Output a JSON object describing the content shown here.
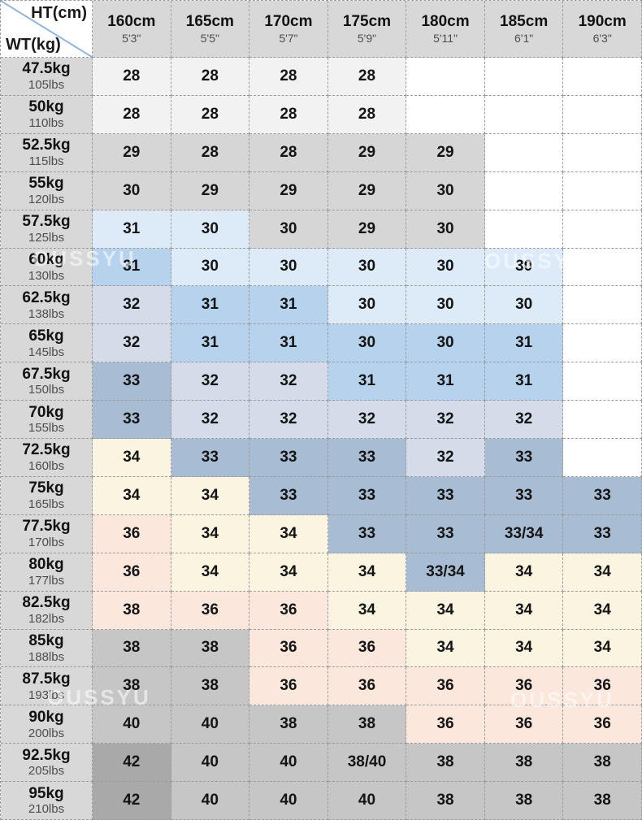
{
  "palette": {
    "w": "#ffffff",
    "g0": "#f2f2f2",
    "g1": "#d6d6d6",
    "g2": "#c6c6c6",
    "g3": "#a9a9a9",
    "b0": "#dcebf7",
    "b1": "#b7d2ec",
    "b2": "#a8bcd3",
    "b3": "#d3dce8",
    "cream": "#faf4e0",
    "pink": "#fbe7db",
    "header": "#d8d8d8",
    "border": "#9b9b9b",
    "diagonal": "#8fb3d9"
  },
  "watermark": {
    "text": "OUSSYU"
  },
  "corner": {
    "height_label": "HT(cm)",
    "weight_label": "WT(kg)"
  },
  "chart_data": {
    "type": "table",
    "columns": [
      {
        "cm": "160cm",
        "ftin": "5'3\""
      },
      {
        "cm": "165cm",
        "ftin": "5'5\""
      },
      {
        "cm": "170cm",
        "ftin": "5'7\""
      },
      {
        "cm": "175cm",
        "ftin": "5'9\""
      },
      {
        "cm": "180cm",
        "ftin": "5'11\""
      },
      {
        "cm": "185cm",
        "ftin": "6'1\""
      },
      {
        "cm": "190cm",
        "ftin": "6'3\""
      }
    ],
    "rows": [
      {
        "kg": "47.5kg",
        "lbs": "105lbs",
        "cells": [
          {
            "v": "28",
            "c": "g0"
          },
          {
            "v": "28",
            "c": "g0"
          },
          {
            "v": "28",
            "c": "g0"
          },
          {
            "v": "28",
            "c": "g0"
          },
          {
            "v": "",
            "c": "w"
          },
          {
            "v": "",
            "c": "w"
          },
          {
            "v": "",
            "c": "w"
          }
        ]
      },
      {
        "kg": "50kg",
        "lbs": "110lbs",
        "cells": [
          {
            "v": "28",
            "c": "g0"
          },
          {
            "v": "28",
            "c": "g0"
          },
          {
            "v": "28",
            "c": "g0"
          },
          {
            "v": "28",
            "c": "g0"
          },
          {
            "v": "",
            "c": "w"
          },
          {
            "v": "",
            "c": "w"
          },
          {
            "v": "",
            "c": "w"
          }
        ]
      },
      {
        "kg": "52.5kg",
        "lbs": "115lbs",
        "cells": [
          {
            "v": "29",
            "c": "g1"
          },
          {
            "v": "28",
            "c": "g1"
          },
          {
            "v": "28",
            "c": "g1"
          },
          {
            "v": "29",
            "c": "g1"
          },
          {
            "v": "29",
            "c": "g1"
          },
          {
            "v": "",
            "c": "w"
          },
          {
            "v": "",
            "c": "w"
          }
        ]
      },
      {
        "kg": "55kg",
        "lbs": "120lbs",
        "cells": [
          {
            "v": "30",
            "c": "g1"
          },
          {
            "v": "29",
            "c": "g1"
          },
          {
            "v": "29",
            "c": "g1"
          },
          {
            "v": "29",
            "c": "g1"
          },
          {
            "v": "30",
            "c": "g1"
          },
          {
            "v": "",
            "c": "w"
          },
          {
            "v": "",
            "c": "w"
          }
        ]
      },
      {
        "kg": "57.5kg",
        "lbs": "125lbs",
        "cells": [
          {
            "v": "31",
            "c": "b0"
          },
          {
            "v": "30",
            "c": "b0"
          },
          {
            "v": "30",
            "c": "g1"
          },
          {
            "v": "29",
            "c": "g1"
          },
          {
            "v": "30",
            "c": "g1"
          },
          {
            "v": "",
            "c": "w"
          },
          {
            "v": "",
            "c": "w"
          }
        ]
      },
      {
        "kg": "60kg",
        "lbs": "130lbs",
        "cells": [
          {
            "v": "31",
            "c": "b1"
          },
          {
            "v": "30",
            "c": "b0"
          },
          {
            "v": "30",
            "c": "b0"
          },
          {
            "v": "30",
            "c": "b0"
          },
          {
            "v": "30",
            "c": "b0"
          },
          {
            "v": "30",
            "c": "b0"
          },
          {
            "v": "",
            "c": "w"
          }
        ]
      },
      {
        "kg": "62.5kg",
        "lbs": "138lbs",
        "cells": [
          {
            "v": "32",
            "c": "b3"
          },
          {
            "v": "31",
            "c": "b1"
          },
          {
            "v": "31",
            "c": "b1"
          },
          {
            "v": "30",
            "c": "b0"
          },
          {
            "v": "30",
            "c": "b0"
          },
          {
            "v": "30",
            "c": "b0"
          },
          {
            "v": "",
            "c": "w"
          }
        ]
      },
      {
        "kg": "65kg",
        "lbs": "145lbs",
        "cells": [
          {
            "v": "32",
            "c": "b3"
          },
          {
            "v": "31",
            "c": "b1"
          },
          {
            "v": "31",
            "c": "b1"
          },
          {
            "v": "30",
            "c": "b1"
          },
          {
            "v": "30",
            "c": "b1"
          },
          {
            "v": "31",
            "c": "b1"
          },
          {
            "v": "",
            "c": "w"
          }
        ]
      },
      {
        "kg": "67.5kg",
        "lbs": "150lbs",
        "cells": [
          {
            "v": "33",
            "c": "b2"
          },
          {
            "v": "32",
            "c": "b3"
          },
          {
            "v": "32",
            "c": "b3"
          },
          {
            "v": "31",
            "c": "b1"
          },
          {
            "v": "31",
            "c": "b1"
          },
          {
            "v": "31",
            "c": "b1"
          },
          {
            "v": "",
            "c": "w"
          }
        ]
      },
      {
        "kg": "70kg",
        "lbs": "155lbs",
        "cells": [
          {
            "v": "33",
            "c": "b2"
          },
          {
            "v": "32",
            "c": "b3"
          },
          {
            "v": "32",
            "c": "b3"
          },
          {
            "v": "32",
            "c": "b3"
          },
          {
            "v": "32",
            "c": "b3"
          },
          {
            "v": "32",
            "c": "b3"
          },
          {
            "v": "",
            "c": "w"
          }
        ]
      },
      {
        "kg": "72.5kg",
        "lbs": "160lbs",
        "cells": [
          {
            "v": "34",
            "c": "cream"
          },
          {
            "v": "33",
            "c": "b2"
          },
          {
            "v": "33",
            "c": "b2"
          },
          {
            "v": "33",
            "c": "b2"
          },
          {
            "v": "32",
            "c": "b3"
          },
          {
            "v": "33",
            "c": "b2"
          },
          {
            "v": "",
            "c": "w"
          }
        ]
      },
      {
        "kg": "75kg",
        "lbs": "165lbs",
        "cells": [
          {
            "v": "34",
            "c": "cream"
          },
          {
            "v": "34",
            "c": "cream"
          },
          {
            "v": "33",
            "c": "b2"
          },
          {
            "v": "33",
            "c": "b2"
          },
          {
            "v": "33",
            "c": "b2"
          },
          {
            "v": "33",
            "c": "b2"
          },
          {
            "v": "33",
            "c": "b2"
          }
        ]
      },
      {
        "kg": "77.5kg",
        "lbs": "170lbs",
        "cells": [
          {
            "v": "36",
            "c": "pink"
          },
          {
            "v": "34",
            "c": "cream"
          },
          {
            "v": "34",
            "c": "cream"
          },
          {
            "v": "33",
            "c": "b2"
          },
          {
            "v": "33",
            "c": "b2"
          },
          {
            "v": "33/34",
            "c": "b2"
          },
          {
            "v": "33",
            "c": "b2"
          }
        ]
      },
      {
        "kg": "80kg",
        "lbs": "177lbs",
        "cells": [
          {
            "v": "36",
            "c": "pink"
          },
          {
            "v": "34",
            "c": "cream"
          },
          {
            "v": "34",
            "c": "cream"
          },
          {
            "v": "34",
            "c": "cream"
          },
          {
            "v": "33/34",
            "c": "b2"
          },
          {
            "v": "34",
            "c": "cream"
          },
          {
            "v": "34",
            "c": "cream"
          }
        ]
      },
      {
        "kg": "82.5kg",
        "lbs": "182lbs",
        "cells": [
          {
            "v": "38",
            "c": "pink"
          },
          {
            "v": "36",
            "c": "pink"
          },
          {
            "v": "36",
            "c": "pink"
          },
          {
            "v": "34",
            "c": "cream"
          },
          {
            "v": "34",
            "c": "cream"
          },
          {
            "v": "34",
            "c": "cream"
          },
          {
            "v": "34",
            "c": "cream"
          }
        ]
      },
      {
        "kg": "85kg",
        "lbs": "188lbs",
        "cells": [
          {
            "v": "38",
            "c": "g2"
          },
          {
            "v": "38",
            "c": "g2"
          },
          {
            "v": "36",
            "c": "pink"
          },
          {
            "v": "36",
            "c": "pink"
          },
          {
            "v": "34",
            "c": "cream"
          },
          {
            "v": "34",
            "c": "cream"
          },
          {
            "v": "34",
            "c": "cream"
          }
        ]
      },
      {
        "kg": "87.5kg",
        "lbs": "193lbs",
        "cells": [
          {
            "v": "38",
            "c": "g2"
          },
          {
            "v": "38",
            "c": "g2"
          },
          {
            "v": "36",
            "c": "pink"
          },
          {
            "v": "36",
            "c": "pink"
          },
          {
            "v": "36",
            "c": "pink"
          },
          {
            "v": "36",
            "c": "pink"
          },
          {
            "v": "36",
            "c": "pink"
          }
        ]
      },
      {
        "kg": "90kg",
        "lbs": "200lbs",
        "cells": [
          {
            "v": "40",
            "c": "g2"
          },
          {
            "v": "40",
            "c": "g2"
          },
          {
            "v": "38",
            "c": "g2"
          },
          {
            "v": "38",
            "c": "g2"
          },
          {
            "v": "36",
            "c": "pink"
          },
          {
            "v": "36",
            "c": "pink"
          },
          {
            "v": "36",
            "c": "pink"
          }
        ]
      },
      {
        "kg": "92.5kg",
        "lbs": "205lbs",
        "cells": [
          {
            "v": "42",
            "c": "g3"
          },
          {
            "v": "40",
            "c": "g2"
          },
          {
            "v": "40",
            "c": "g2"
          },
          {
            "v": "38/40",
            "c": "g2"
          },
          {
            "v": "38",
            "c": "g2"
          },
          {
            "v": "38",
            "c": "g2"
          },
          {
            "v": "38",
            "c": "g2"
          }
        ]
      },
      {
        "kg": "95kg",
        "lbs": "210lbs",
        "cells": [
          {
            "v": "42",
            "c": "g3"
          },
          {
            "v": "40",
            "c": "g2"
          },
          {
            "v": "40",
            "c": "g2"
          },
          {
            "v": "40",
            "c": "g2"
          },
          {
            "v": "38",
            "c": "g2"
          },
          {
            "v": "38",
            "c": "g2"
          },
          {
            "v": "38",
            "c": "g2"
          }
        ]
      }
    ]
  }
}
